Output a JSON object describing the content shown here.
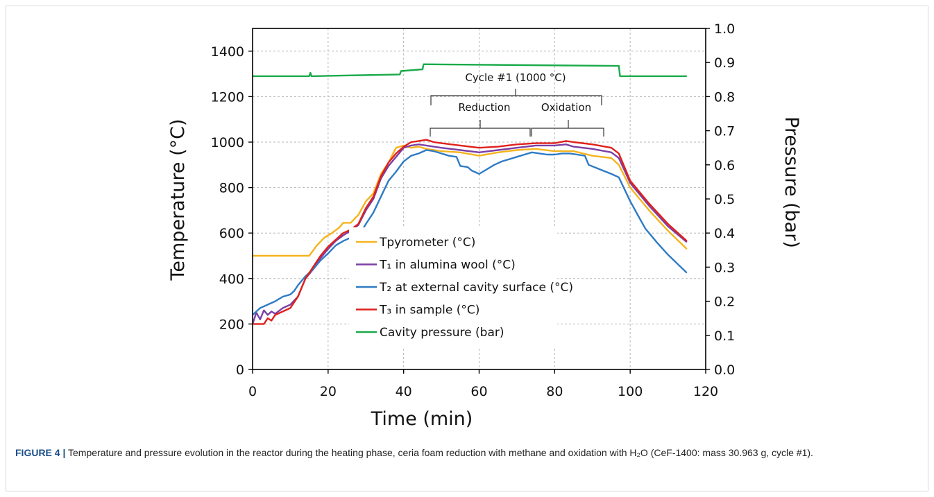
{
  "chart_data": {
    "type": "line",
    "xlabel": "Time (min)",
    "ylabel_left": "Temperature (°C)",
    "ylabel_right": "Pressure (bar)",
    "xlim": [
      0,
      120
    ],
    "ylim_left": [
      0,
      1500
    ],
    "ylim_right": [
      0.0,
      1.0
    ],
    "x_ticks": [
      "0",
      "20",
      "40",
      "60",
      "80",
      "100",
      "120"
    ],
    "y_left_ticks": [
      "0",
      "200",
      "400",
      "600",
      "800",
      "1000",
      "1200",
      "1400"
    ],
    "y_right_ticks": [
      "0.0",
      "0.1",
      "0.2",
      "0.3",
      "0.4",
      "0.5",
      "0.6",
      "0.7",
      "0.8",
      "0.9",
      "1.0"
    ],
    "grid": true,
    "legend_position": "lower-center",
    "series": [
      {
        "name": "Tpyrometer (°C)",
        "axis": "left",
        "color": "#f5b41e",
        "points": [
          [
            0,
            500
          ],
          [
            15,
            500
          ],
          [
            17,
            545
          ],
          [
            19,
            580
          ],
          [
            21,
            600
          ],
          [
            23,
            625
          ],
          [
            24,
            645
          ],
          [
            26,
            645
          ],
          [
            28,
            680
          ],
          [
            30,
            740
          ],
          [
            32,
            775
          ],
          [
            34,
            860
          ],
          [
            36,
            910
          ],
          [
            38,
            975
          ],
          [
            40,
            985
          ],
          [
            42,
            975
          ],
          [
            44,
            980
          ],
          [
            46,
            970
          ],
          [
            50,
            960
          ],
          [
            55,
            955
          ],
          [
            60,
            940
          ],
          [
            65,
            955
          ],
          [
            70,
            965
          ],
          [
            75,
            970
          ],
          [
            80,
            960
          ],
          [
            85,
            960
          ],
          [
            90,
            940
          ],
          [
            95,
            930
          ],
          [
            97,
            900
          ],
          [
            100,
            800
          ],
          [
            105,
            700
          ],
          [
            110,
            610
          ],
          [
            115,
            530
          ]
        ]
      },
      {
        "name": "T₁ in alumina wool (°C)",
        "axis": "left",
        "color": "#7b3fa6",
        "points": [
          [
            0,
            200
          ],
          [
            1,
            250
          ],
          [
            2,
            220
          ],
          [
            3,
            260
          ],
          [
            4,
            240
          ],
          [
            5,
            255
          ],
          [
            6,
            245
          ],
          [
            8,
            270
          ],
          [
            10,
            285
          ],
          [
            12,
            320
          ],
          [
            14,
            400
          ],
          [
            16,
            440
          ],
          [
            18,
            490
          ],
          [
            20,
            530
          ],
          [
            22,
            565
          ],
          [
            24,
            590
          ],
          [
            26,
            610
          ],
          [
            28,
            635
          ],
          [
            30,
            700
          ],
          [
            32,
            750
          ],
          [
            34,
            840
          ],
          [
            36,
            895
          ],
          [
            38,
            935
          ],
          [
            40,
            975
          ],
          [
            42,
            985
          ],
          [
            44,
            990
          ],
          [
            46,
            985
          ],
          [
            50,
            975
          ],
          [
            55,
            965
          ],
          [
            60,
            955
          ],
          [
            65,
            965
          ],
          [
            70,
            975
          ],
          [
            75,
            985
          ],
          [
            80,
            985
          ],
          [
            83,
            990
          ],
          [
            85,
            980
          ],
          [
            90,
            970
          ],
          [
            95,
            955
          ],
          [
            97,
            930
          ],
          [
            100,
            820
          ],
          [
            105,
            720
          ],
          [
            110,
            630
          ],
          [
            115,
            560
          ]
        ]
      },
      {
        "name": "T₂ at external cavity surface (°C)",
        "axis": "left",
        "color": "#2e7bc4",
        "points": [
          [
            0,
            240
          ],
          [
            1,
            255
          ],
          [
            2,
            270
          ],
          [
            4,
            285
          ],
          [
            6,
            300
          ],
          [
            8,
            320
          ],
          [
            10,
            330
          ],
          [
            11,
            345
          ],
          [
            12,
            370
          ],
          [
            14,
            410
          ],
          [
            16,
            440
          ],
          [
            18,
            480
          ],
          [
            20,
            510
          ],
          [
            22,
            545
          ],
          [
            24,
            565
          ],
          [
            26,
            580
          ],
          [
            28,
            585
          ],
          [
            30,
            640
          ],
          [
            32,
            690
          ],
          [
            34,
            760
          ],
          [
            36,
            830
          ],
          [
            38,
            870
          ],
          [
            40,
            915
          ],
          [
            42,
            940
          ],
          [
            44,
            950
          ],
          [
            46,
            965
          ],
          [
            48,
            960
          ],
          [
            50,
            950
          ],
          [
            52,
            940
          ],
          [
            54,
            935
          ],
          [
            55,
            895
          ],
          [
            57,
            890
          ],
          [
            58,
            875
          ],
          [
            60,
            860
          ],
          [
            62,
            880
          ],
          [
            64,
            900
          ],
          [
            66,
            915
          ],
          [
            68,
            925
          ],
          [
            70,
            935
          ],
          [
            72,
            945
          ],
          [
            74,
            955
          ],
          [
            76,
            950
          ],
          [
            78,
            945
          ],
          [
            80,
            945
          ],
          [
            82,
            950
          ],
          [
            84,
            950
          ],
          [
            86,
            945
          ],
          [
            88,
            940
          ],
          [
            89,
            900
          ],
          [
            92,
            880
          ],
          [
            95,
            860
          ],
          [
            97,
            845
          ],
          [
            100,
            740
          ],
          [
            102,
            680
          ],
          [
            104,
            620
          ],
          [
            105,
            600
          ],
          [
            107,
            560
          ],
          [
            110,
            505
          ],
          [
            115,
            425
          ]
        ]
      },
      {
        "name": "T₃ in sample (°C)",
        "axis": "left",
        "color": "#e0201b",
        "points": [
          [
            0,
            200
          ],
          [
            3,
            200
          ],
          [
            4,
            225
          ],
          [
            5,
            215
          ],
          [
            6,
            240
          ],
          [
            8,
            255
          ],
          [
            10,
            270
          ],
          [
            12,
            320
          ],
          [
            14,
            400
          ],
          [
            16,
            450
          ],
          [
            18,
            500
          ],
          [
            20,
            540
          ],
          [
            22,
            570
          ],
          [
            24,
            600
          ],
          [
            26,
            615
          ],
          [
            28,
            640
          ],
          [
            30,
            710
          ],
          [
            32,
            760
          ],
          [
            34,
            850
          ],
          [
            36,
            910
          ],
          [
            38,
            950
          ],
          [
            40,
            980
          ],
          [
            42,
            1000
          ],
          [
            44,
            1005
          ],
          [
            46,
            1010
          ],
          [
            48,
            1000
          ],
          [
            50,
            995
          ],
          [
            55,
            985
          ],
          [
            60,
            975
          ],
          [
            65,
            980
          ],
          [
            70,
            990
          ],
          [
            75,
            995
          ],
          [
            80,
            995
          ],
          [
            83,
            1005
          ],
          [
            85,
            1000
          ],
          [
            90,
            990
          ],
          [
            95,
            975
          ],
          [
            97,
            950
          ],
          [
            100,
            830
          ],
          [
            105,
            730
          ],
          [
            110,
            640
          ],
          [
            115,
            565
          ]
        ]
      },
      {
        "name": "Cavity pressure (bar)",
        "axis": "right",
        "color": "#1aaa4a",
        "points": [
          [
            0,
            0.86
          ],
          [
            15,
            0.86
          ],
          [
            15.3,
            0.87
          ],
          [
            15.6,
            0.86
          ],
          [
            39,
            0.865
          ],
          [
            39.3,
            0.875
          ],
          [
            45,
            0.88
          ],
          [
            45.3,
            0.895
          ],
          [
            97,
            0.89
          ],
          [
            97.3,
            0.86
          ],
          [
            115,
            0.86
          ]
        ]
      }
    ]
  },
  "annotations": {
    "cycle": "Cycle #1 (1000 °C)",
    "reduction": "Reduction",
    "oxidation": "Oxidation"
  },
  "caption": {
    "label": "FIGURE 4 |",
    "text": "Temperature and pressure evolution in the reactor during the heating phase, ceria foam reduction with methane and oxidation with H₂O (CeF-1400: mass 30.963 g, cycle #1)."
  }
}
